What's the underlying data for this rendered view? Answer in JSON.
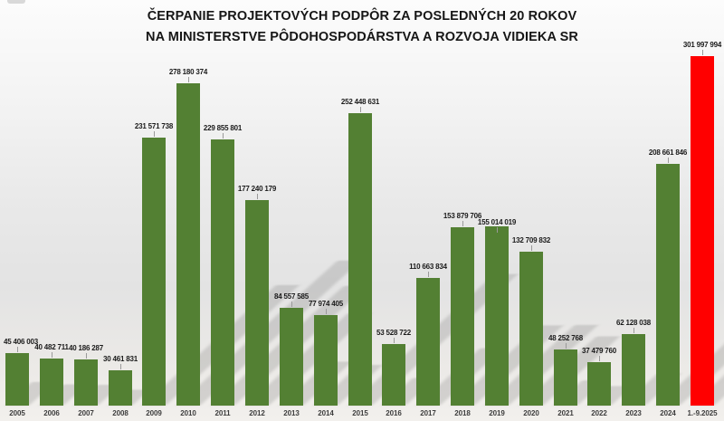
{
  "title": {
    "line1": "ČERPANIE PROJEKTOVÝCH PODPÔR ZA POSLEDNÝCH 20 ROKOV",
    "line2": "NA MINISTERSTVE PÔDOHOSPODÁRSTVA A ROZVOJA VIDIEKA SR"
  },
  "chart_data": {
    "type": "bar",
    "title": "ČERPANIE PROJEKTOVÝCH PODPÔR ZA POSLEDNÝCH 20 ROKOV NA MINISTERSTVE PÔDOHOSPODÁRSTVA A ROZVOJA VIDIEKA SR",
    "categories": [
      "2005",
      "2006",
      "2007",
      "2008",
      "2009",
      "2010",
      "2011",
      "2012",
      "2013",
      "2014",
      "2015",
      "2016",
      "2017",
      "2018",
      "2019",
      "2020",
      "2021",
      "2022",
      "2023",
      "2024",
      "1.-9.2025"
    ],
    "values": [
      45406003,
      40482711,
      40186287,
      30461831,
      231571738,
      278180374,
      229855801,
      177240179,
      84557585,
      77974405,
      252448631,
      53528722,
      110663834,
      153879706,
      155014019,
      132709832,
      48252768,
      37479760,
      62128038,
      208661846,
      301997994
    ],
    "data_labels": [
      "45 406 003",
      "40 482 711",
      "40 186 287",
      "30 461 831",
      "231 571 738",
      "278 180 374",
      "229 855 801",
      "177 240 179",
      "84 557 585",
      "77 974 405",
      "252 448 631",
      "53 528 722",
      "110 663 834",
      "153 879 706",
      "155 014 019",
      "132 709 832",
      "48 252 768",
      "37 479 760",
      "62 128 038",
      "208 661 846",
      "301 997 994"
    ],
    "bar_color": "#538033",
    "highlight_color": "#ff0000",
    "highlight_index": 20,
    "xlabel": "",
    "ylabel": "",
    "ylim": [
      0,
      302000000
    ],
    "grid": false,
    "legend": false,
    "axis_lines": false,
    "data_labels_visible": true
  }
}
